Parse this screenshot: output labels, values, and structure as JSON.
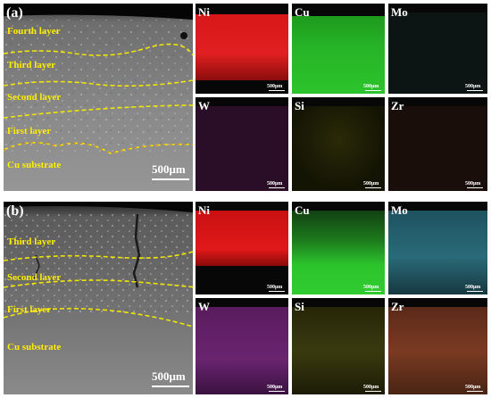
{
  "panel_a": {
    "id": "(a)",
    "layers": [
      "Fourth layer",
      "Third layer",
      "Second layer",
      "First layer",
      "Cu substrate"
    ],
    "scale": "500μm",
    "maps": [
      {
        "element": "Ni",
        "color": "#e81818",
        "scale": "500μm"
      },
      {
        "element": "Cu",
        "color": "#28c028",
        "scale": "500μm"
      },
      {
        "element": "Mo",
        "color": "#1a3a3a",
        "scale": "500μm"
      },
      {
        "element": "W",
        "color": "#4a1848",
        "scale": "500μm"
      },
      {
        "element": "Si",
        "color": "#6a6a10",
        "scale": "500μm"
      },
      {
        "element": "Zr",
        "color": "#241410",
        "scale": "500μm"
      }
    ]
  },
  "panel_b": {
    "id": "(b)",
    "layers": [
      "Third layer",
      "Second layer",
      "First layer",
      "Cu substrate"
    ],
    "scale": "500μm",
    "maps": [
      {
        "element": "Ni",
        "color": "#e01414",
        "scale": "500μm"
      },
      {
        "element": "Cu",
        "color": "#28c028",
        "scale": "500μm"
      },
      {
        "element": "Mo",
        "color": "#2a6a78",
        "scale": "500μm"
      },
      {
        "element": "W",
        "color": "#6a2470",
        "scale": "500μm"
      },
      {
        "element": "Si",
        "color": "#5a5a18",
        "scale": "500μm"
      },
      {
        "element": "Zr",
        "color": "#7a3a22",
        "scale": "500μm"
      }
    ]
  }
}
